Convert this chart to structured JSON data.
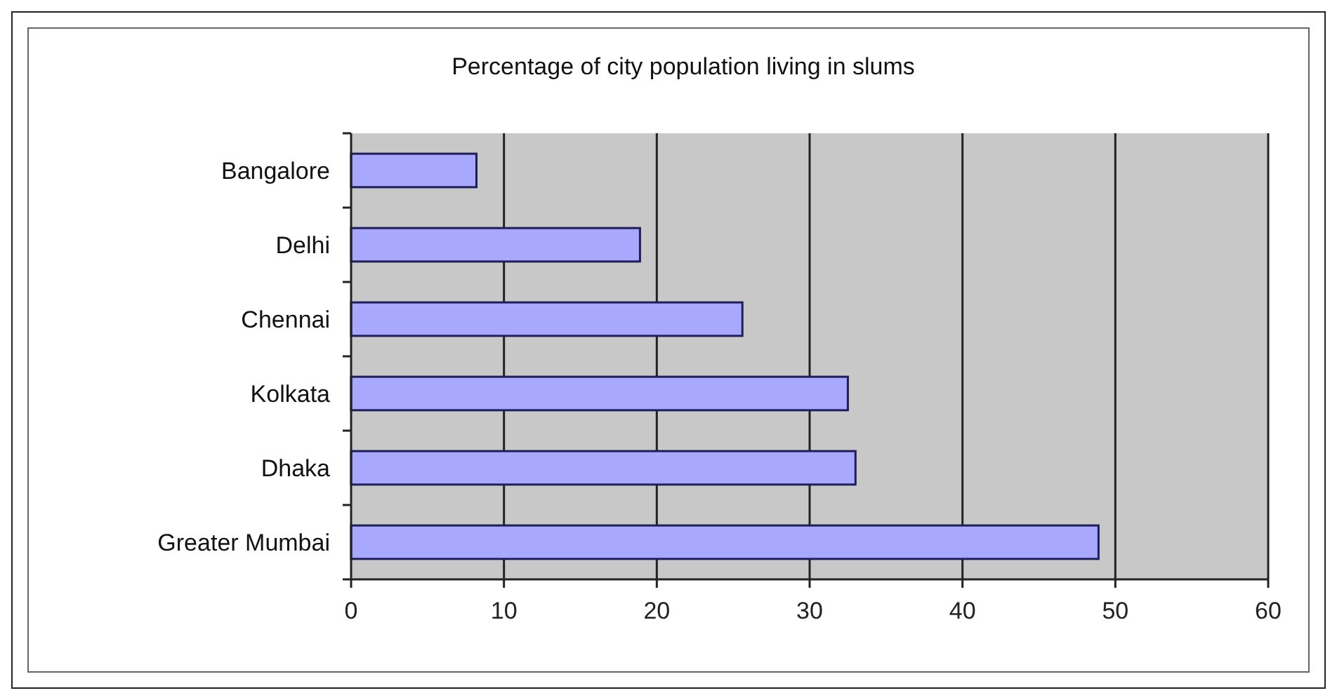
{
  "chart_data": {
    "type": "bar",
    "orientation": "horizontal",
    "title": "Percentage of city population living in slums",
    "categories": [
      "Bangalore",
      "Delhi",
      "Chennai",
      "Kolkata",
      "Dhaka",
      "Greater Mumbai"
    ],
    "values": [
      8.2,
      18.9,
      25.6,
      32.5,
      33.0,
      48.9
    ],
    "color": "#a8a8ff",
    "xlim": [
      0,
      60
    ],
    "xticks": [
      0,
      10,
      20,
      30,
      40,
      50,
      60
    ],
    "grid": "x"
  }
}
